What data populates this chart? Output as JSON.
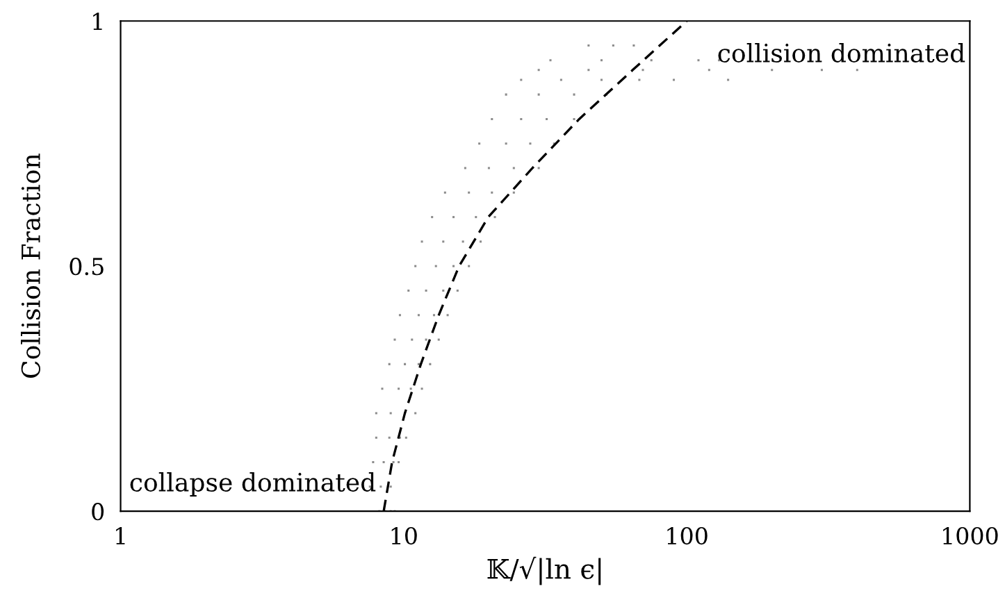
{
  "chart_data": {
    "type": "scatter",
    "xlabel": "𝕂/√|ln ϵ|",
    "ylabel": "Collision Fraction",
    "log": "x",
    "xlim": [
      1,
      1000
    ],
    "xticks": [
      1,
      10,
      100,
      1000
    ],
    "ylim": [
      0,
      1
    ],
    "yticks": [
      0,
      0.5,
      1
    ],
    "grid": false,
    "legend": false,
    "annotations": [
      "collapse dominated",
      "collision dominated"
    ],
    "series": [
      {
        "color": "#8c8c8c",
        "marker": "square",
        "x": [
          8.2,
          8.6,
          9.0,
          9.3,
          7.6,
          8.3,
          9.0,
          7.8,
          8.5,
          9.2,
          9.6,
          8.0,
          8.9,
          9.7,
          10.2,
          8.0,
          9.0,
          10.1,
          11.0,
          8.4,
          9.6,
          10.6,
          11.6,
          8.9,
          10.1,
          11.3,
          12.4,
          9.3,
          10.7,
          12.0,
          13.3,
          9.7,
          11.3,
          12.8,
          14.3,
          10.4,
          12.0,
          13.8,
          15.5,
          11.0,
          13.0,
          15.0,
          17.0,
          11.6,
          13.8,
          16.2,
          18.7,
          12.6,
          15.0,
          18.0,
          21.0,
          14.0,
          17.0,
          20.5,
          24.5,
          16.5,
          20.0,
          24.5,
          30.0,
          18.5,
          23.0,
          28.0,
          34.0,
          20.5,
          26.0,
          32.0,
          40.0,
          23.0,
          30.0,
          40.0,
          52.0,
          26.0,
          36.0,
          50.0,
          68.0,
          90.0,
          140,
          30.0,
          45.0,
          70.0,
          120,
          200,
          300,
          400,
          33.0,
          50.0,
          75.0,
          110,
          130,
          45.0,
          55.0,
          65.0
        ],
        "values": [
          0,
          0,
          0,
          0,
          0.05,
          0.05,
          0.05,
          0.1,
          0.1,
          0.1,
          0.1,
          0.15,
          0.15,
          0.15,
          0.15,
          0.2,
          0.2,
          0.2,
          0.2,
          0.25,
          0.25,
          0.25,
          0.25,
          0.3,
          0.3,
          0.3,
          0.3,
          0.35,
          0.35,
          0.35,
          0.35,
          0.4,
          0.4,
          0.4,
          0.4,
          0.45,
          0.45,
          0.45,
          0.45,
          0.5,
          0.5,
          0.5,
          0.5,
          0.55,
          0.55,
          0.55,
          0.55,
          0.6,
          0.6,
          0.6,
          0.6,
          0.65,
          0.65,
          0.65,
          0.65,
          0.7,
          0.7,
          0.7,
          0.7,
          0.75,
          0.75,
          0.75,
          0.75,
          0.8,
          0.8,
          0.8,
          0.8,
          0.85,
          0.85,
          0.85,
          0.85,
          0.88,
          0.88,
          0.88,
          0.88,
          0.88,
          0.88,
          0.9,
          0.9,
          0.9,
          0.9,
          0.9,
          0.9,
          0.9,
          0.92,
          0.92,
          0.92,
          0.92,
          0.92,
          0.95,
          0.95,
          0.95
        ]
      },
      {
        "type": "line",
        "color": "#000000",
        "line_style": "dashed",
        "marker": "none",
        "x": [
          8.5,
          9.1,
          10.1,
          11.5,
          13.3,
          15.7,
          19.9,
          28.5,
          41.7,
          64.4,
          100
        ],
        "values": [
          0,
          0.1,
          0.2,
          0.3,
          0.4,
          0.5,
          0.6,
          0.7,
          0.8,
          0.9,
          1.0
        ]
      }
    ]
  }
}
